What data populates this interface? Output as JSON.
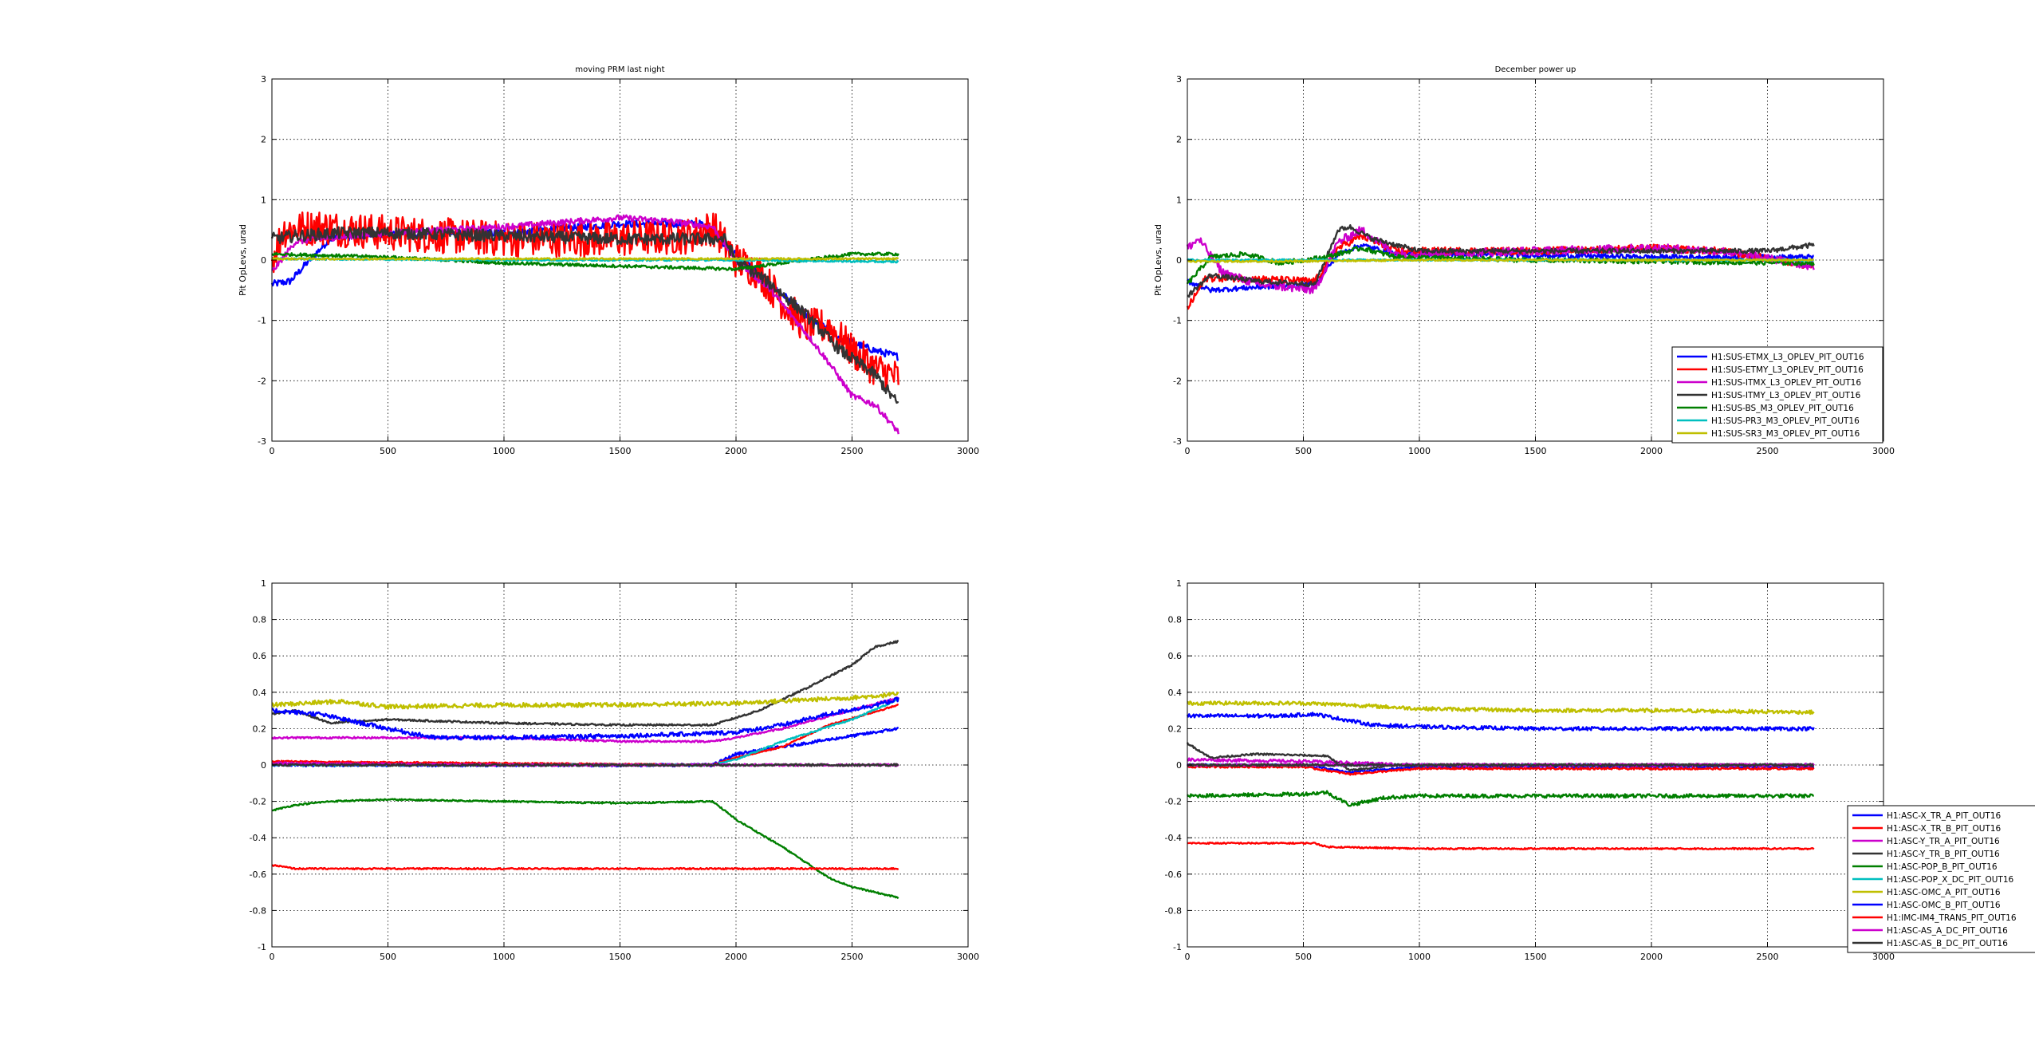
{
  "chart_data": [
    {
      "type": "line",
      "title": "moving PRM last night",
      "xlabel": "",
      "ylabel": "Pit OpLevs, urad",
      "xlim": [
        0,
        3000
      ],
      "ylim": [
        -3,
        3
      ],
      "xticks": [
        0,
        500,
        1000,
        1500,
        2000,
        2500,
        3000
      ],
      "yticks": [
        -3,
        -2,
        -1,
        0,
        1,
        2,
        3
      ],
      "grid": true,
      "legend": null,
      "series": [
        {
          "color": "#0000ff",
          "noise": 0.06,
          "x": [
            0,
            80,
            150,
            250,
            500,
            1000,
            1500,
            1850,
            2000,
            2150,
            2300,
            2450,
            2600,
            2700
          ],
          "y": [
            -0.4,
            -0.35,
            -0.05,
            0.35,
            0.45,
            0.45,
            0.6,
            0.6,
            0.1,
            -0.4,
            -0.9,
            -1.3,
            -1.5,
            -1.6
          ]
        },
        {
          "color": "#ff0000",
          "noise": 0.3,
          "x": [
            0,
            50,
            200,
            500,
            1000,
            1500,
            1800,
            1900,
            2000,
            2100,
            2200,
            2300,
            2400,
            2500,
            2600,
            2700
          ],
          "y": [
            0.0,
            0.5,
            0.55,
            0.45,
            0.35,
            0.35,
            0.4,
            0.55,
            0.0,
            -0.2,
            -0.7,
            -1.1,
            -1.1,
            -1.5,
            -1.8,
            -1.95
          ]
        },
        {
          "color": "#cc00cc",
          "noise": 0.05,
          "x": [
            0,
            100,
            200,
            500,
            1000,
            1500,
            1700,
            1900,
            2000,
            2150,
            2300,
            2400,
            2500,
            2600,
            2700
          ],
          "y": [
            -0.2,
            0.3,
            0.35,
            0.45,
            0.55,
            0.7,
            0.65,
            0.55,
            0.0,
            -0.5,
            -1.2,
            -1.7,
            -2.25,
            -2.4,
            -2.85
          ]
        },
        {
          "color": "#333333",
          "noise": 0.1,
          "x": [
            0,
            100,
            300,
            500,
            1000,
            1500,
            1800,
            1950,
            2000,
            2150,
            2300,
            2450,
            2600,
            2700
          ],
          "y": [
            0.35,
            0.4,
            0.45,
            0.45,
            0.4,
            0.35,
            0.35,
            0.35,
            0.0,
            -0.4,
            -0.9,
            -1.5,
            -1.9,
            -2.4
          ]
        },
        {
          "color": "#007f00",
          "noise": 0.025,
          "x": [
            0,
            500,
            1000,
            1500,
            2000,
            2300,
            2500,
            2700
          ],
          "y": [
            0.1,
            0.05,
            -0.05,
            -0.1,
            -0.15,
            0.0,
            0.1,
            0.1
          ]
        },
        {
          "color": "#00bfbf",
          "noise": 0.015,
          "x": [
            0,
            1000,
            2000,
            2700
          ],
          "y": [
            0.02,
            0.0,
            0.0,
            -0.03
          ]
        },
        {
          "color": "#bfbf00",
          "noise": 0.015,
          "x": [
            0,
            1000,
            2000,
            2700
          ],
          "y": [
            0.02,
            0.02,
            0.02,
            0.02
          ]
        }
      ]
    },
    {
      "type": "line",
      "title": "December power up",
      "xlabel": "",
      "ylabel": "Pit OpLevs, urad",
      "xlim": [
        0,
        3000
      ],
      "ylim": [
        -3,
        3
      ],
      "xticks": [
        0,
        500,
        1000,
        1500,
        2000,
        2500,
        3000
      ],
      "yticks": [
        -3,
        -2,
        -1,
        0,
        1,
        2,
        3
      ],
      "grid": true,
      "legend": "lower-right",
      "series": [
        {
          "name": "H1:SUS-ETMX_L3_OPLEV_PIT_OUT16",
          "color": "#0000ff",
          "noise": 0.04,
          "x": [
            0,
            100,
            300,
            550,
            650,
            750,
            900,
            1200,
            2000,
            2700
          ],
          "y": [
            -0.35,
            -0.5,
            -0.45,
            -0.4,
            0.1,
            0.25,
            0.1,
            0.1,
            0.05,
            0.05
          ]
        },
        {
          "name": "H1:SUS-ETMY_L3_OPLEV_PIT_OUT16",
          "color": "#ff0000",
          "noise": 0.06,
          "x": [
            0,
            80,
            200,
            550,
            650,
            750,
            900,
            1500,
            2000,
            2300,
            2700
          ],
          "y": [
            -0.8,
            -0.3,
            -0.3,
            -0.35,
            0.2,
            0.4,
            0.15,
            0.15,
            0.2,
            0.15,
            -0.1
          ]
        },
        {
          "name": "H1:SUS-ITMX_L3_OPLEV_PIT_OUT16",
          "color": "#cc00cc",
          "noise": 0.07,
          "x": [
            0,
            50,
            150,
            300,
            550,
            650,
            750,
            900,
            1500,
            2000,
            2300,
            2700
          ],
          "y": [
            0.2,
            0.35,
            -0.2,
            -0.4,
            -0.5,
            0.3,
            0.5,
            0.1,
            0.15,
            0.2,
            0.15,
            -0.1
          ]
        },
        {
          "name": "H1:SUS-ITMY_L3_OPLEV_PIT_OUT16",
          "color": "#333333",
          "noise": 0.04,
          "x": [
            0,
            100,
            300,
            550,
            650,
            700,
            800,
            1000,
            2000,
            2500,
            2700
          ],
          "y": [
            -0.6,
            -0.25,
            -0.35,
            -0.4,
            0.5,
            0.55,
            0.35,
            0.15,
            0.15,
            0.15,
            0.25
          ]
        },
        {
          "name": "H1:SUS-BS_M3_OPLEV_PIT_OUT16",
          "color": "#007f00",
          "noise": 0.04,
          "x": [
            0,
            100,
            250,
            400,
            600,
            750,
            900,
            1500,
            2700
          ],
          "y": [
            -0.4,
            0.05,
            0.1,
            -0.05,
            0.05,
            0.2,
            0.05,
            0.0,
            -0.05
          ]
        },
        {
          "name": "H1:SUS-PR3_M3_OPLEV_PIT_OUT16",
          "color": "#00bfbf",
          "noise": 0.015,
          "x": [
            0,
            500,
            1000,
            2700
          ],
          "y": [
            0.0,
            0.0,
            0.0,
            0.0
          ]
        },
        {
          "name": "H1:SUS-SR3_M3_OPLEV_PIT_OUT16",
          "color": "#bfbf00",
          "noise": 0.015,
          "x": [
            0,
            500,
            1000,
            2700
          ],
          "y": [
            -0.02,
            -0.02,
            0.0,
            0.0
          ]
        }
      ]
    },
    {
      "type": "line",
      "title": "",
      "xlabel": "",
      "ylabel": "",
      "xlim": [
        0,
        3000
      ],
      "ylim": [
        -1,
        1
      ],
      "xticks": [
        0,
        500,
        1000,
        1500,
        2000,
        2500,
        3000
      ],
      "yticks": [
        -1,
        -0.8,
        -0.6,
        -0.4,
        -0.2,
        0,
        0.2,
        0.4,
        0.6,
        0.8,
        1
      ],
      "grid": true,
      "legend": null,
      "series": [
        {
          "color": "#0000ff",
          "noise": 0.008,
          "x": [
            0,
            1900,
            2000,
            2300,
            2700
          ],
          "y": [
            0.0,
            0.0,
            0.06,
            0.12,
            0.2
          ]
        },
        {
          "color": "#ff0000",
          "noise": 0.004,
          "x": [
            0,
            1900,
            2000,
            2200,
            2400,
            2700
          ],
          "y": [
            0.02,
            0.0,
            0.04,
            0.1,
            0.22,
            0.33
          ]
        },
        {
          "color": "#cc00cc",
          "noise": 0.005,
          "x": [
            0,
            500,
            1000,
            1500,
            1900,
            2000,
            2200,
            2700
          ],
          "y": [
            0.15,
            0.15,
            0.15,
            0.13,
            0.13,
            0.15,
            0.2,
            0.37
          ]
        },
        {
          "color": "#333333",
          "noise": 0.005,
          "x": [
            0,
            100,
            250,
            500,
            1000,
            1500,
            1900,
            2100,
            2300,
            2500,
            2600,
            2700
          ],
          "y": [
            0.28,
            0.3,
            0.23,
            0.25,
            0.23,
            0.22,
            0.22,
            0.3,
            0.42,
            0.55,
            0.65,
            0.68
          ]
        },
        {
          "color": "#007f00",
          "noise": 0.004,
          "x": [
            0,
            100,
            250,
            500,
            1000,
            1500,
            1900,
            2000,
            2200,
            2400,
            2500,
            2600,
            2700
          ],
          "y": [
            -0.25,
            -0.22,
            -0.2,
            -0.19,
            -0.2,
            -0.21,
            -0.2,
            -0.3,
            -0.45,
            -0.62,
            -0.67,
            -0.7,
            -0.73
          ]
        },
        {
          "color": "#00bfbf",
          "noise": 0.004,
          "x": [
            0,
            1900,
            2000,
            2200,
            2500,
            2700
          ],
          "y": [
            0.0,
            0.0,
            0.03,
            0.13,
            0.25,
            0.36
          ]
        },
        {
          "color": "#bfbf00",
          "noise": 0.012,
          "x": [
            0,
            300,
            500,
            1000,
            1500,
            2000,
            2500,
            2700
          ],
          "y": [
            0.33,
            0.35,
            0.32,
            0.33,
            0.33,
            0.34,
            0.37,
            0.39
          ]
        },
        {
          "color": "#0000ff",
          "noise": 0.012,
          "x": [
            0,
            200,
            500,
            700,
            1000,
            1500,
            1800,
            2000,
            2200,
            2400,
            2600,
            2700
          ],
          "y": [
            0.3,
            0.28,
            0.2,
            0.15,
            0.15,
            0.16,
            0.17,
            0.18,
            0.22,
            0.28,
            0.33,
            0.36
          ]
        },
        {
          "color": "#ff0000",
          "noise": 0.004,
          "x": [
            0,
            100,
            1000,
            2000,
            2700
          ],
          "y": [
            -0.55,
            -0.57,
            -0.57,
            -0.57,
            -0.57
          ]
        },
        {
          "color": "#cc00cc",
          "noise": 0.006,
          "x": [
            0,
            1000,
            2000,
            2700
          ],
          "y": [
            0.01,
            0.0,
            0.0,
            0.0
          ]
        },
        {
          "color": "#333333",
          "noise": 0.006,
          "x": [
            0,
            1000,
            2000,
            2700
          ],
          "y": [
            0.0,
            0.0,
            0.0,
            0.0
          ]
        }
      ]
    },
    {
      "type": "line",
      "title": "",
      "xlabel": "",
      "ylabel": "",
      "xlim": [
        0,
        3000
      ],
      "ylim": [
        -1,
        1
      ],
      "xticks": [
        0,
        500,
        1000,
        1500,
        2000,
        2500,
        3000
      ],
      "yticks": [
        -1,
        -0.8,
        -0.6,
        -0.4,
        -0.2,
        0,
        0.2,
        0.4,
        0.6,
        0.8,
        1
      ],
      "grid": true,
      "legend": "lower-right",
      "series": [
        {
          "name": "H1:ASC-X_TR_A_PIT_OUT16",
          "color": "#0000ff",
          "noise": 0.005,
          "x": [
            0,
            500,
            700,
            1000,
            2700
          ],
          "y": [
            0.0,
            0.0,
            -0.04,
            -0.01,
            -0.01
          ]
        },
        {
          "name": "H1:ASC-X_TR_B_PIT_OUT16",
          "color": "#ff0000",
          "noise": 0.005,
          "x": [
            0,
            500,
            700,
            1000,
            2700
          ],
          "y": [
            -0.01,
            -0.01,
            -0.05,
            -0.02,
            -0.02
          ]
        },
        {
          "name": "H1:ASC-Y_TR_A_PIT_OUT16",
          "color": "#cc00cc",
          "noise": 0.008,
          "x": [
            0,
            500,
            1000,
            2700
          ],
          "y": [
            0.03,
            0.02,
            0.0,
            0.0
          ]
        },
        {
          "name": "H1:ASC-Y_TR_B_PIT_OUT16",
          "color": "#333333",
          "noise": 0.005,
          "x": [
            0,
            100,
            300,
            600,
            700,
            900,
            1500,
            2700
          ],
          "y": [
            0.12,
            0.04,
            0.06,
            0.05,
            -0.03,
            0.0,
            0.0,
            0.0
          ]
        },
        {
          "name": "H1:ASC-POP_B_PIT_OUT16",
          "color": "#007f00",
          "noise": 0.01,
          "x": [
            0,
            500,
            600,
            700,
            850,
            1000,
            2000,
            2700
          ],
          "y": [
            -0.17,
            -0.16,
            -0.15,
            -0.22,
            -0.18,
            -0.17,
            -0.17,
            -0.17
          ]
        },
        {
          "name": "H1:ASC-POP_X_DC_PIT_OUT16",
          "color": "#00bfbf",
          "noise": 0.004,
          "x": [
            0,
            1000,
            2700
          ],
          "y": [
            0.0,
            0.0,
            0.0
          ]
        },
        {
          "name": "H1:ASC-OMC_A_PIT_OUT16",
          "color": "#bfbf00",
          "noise": 0.01,
          "x": [
            0,
            500,
            700,
            1000,
            1500,
            2000,
            2700
          ],
          "y": [
            0.34,
            0.34,
            0.33,
            0.31,
            0.3,
            0.3,
            0.29
          ]
        },
        {
          "name": "H1:ASC-OMC_B_PIT_OUT16",
          "color": "#0000ff",
          "noise": 0.01,
          "x": [
            0,
            400,
            550,
            800,
            1000,
            1500,
            2700
          ],
          "y": [
            0.27,
            0.27,
            0.28,
            0.22,
            0.21,
            0.2,
            0.2
          ]
        },
        {
          "name": "H1:IMC-IM4_TRANS_PIT_OUT16",
          "color": "#ff0000",
          "noise": 0.004,
          "x": [
            0,
            550,
            600,
            1000,
            2700
          ],
          "y": [
            -0.43,
            -0.43,
            -0.45,
            -0.46,
            -0.46
          ]
        },
        {
          "name": "H1:ASC-AS_A_DC_PIT_OUT16",
          "color": "#cc00cc",
          "noise": 0.006,
          "x": [
            0,
            1000,
            2700
          ],
          "y": [
            0.0,
            0.0,
            0.0
          ]
        },
        {
          "name": "H1:ASC-AS_B_DC_PIT_OUT16",
          "color": "#333333",
          "noise": 0.006,
          "x": [
            0,
            1000,
            2700
          ],
          "y": [
            0.0,
            0.0,
            0.0
          ]
        }
      ]
    }
  ]
}
